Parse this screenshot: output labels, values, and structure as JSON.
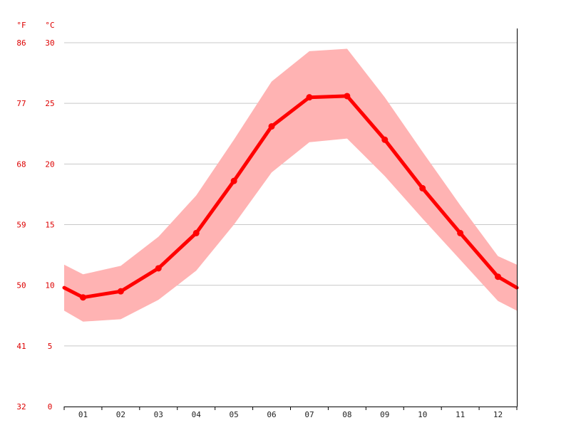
{
  "chart_data": {
    "type": "line",
    "title": "",
    "xlabel": "",
    "ylabel": "",
    "units": {
      "fahrenheit": "°F",
      "celsius": "°C"
    },
    "categories": [
      "01",
      "02",
      "03",
      "04",
      "05",
      "06",
      "07",
      "08",
      "09",
      "10",
      "11",
      "12"
    ],
    "ylim": [
      0,
      30
    ],
    "y_ticks_c": [
      "0",
      "5",
      "10",
      "15",
      "20",
      "25",
      "30"
    ],
    "y_ticks_f": [
      "32",
      "41",
      "50",
      "59",
      "68",
      "77",
      "86"
    ],
    "grid": true,
    "series": [
      {
        "values": [
          9.0,
          9.5,
          11.4,
          14.3,
          18.6,
          23.1,
          25.5,
          25.6,
          22.0,
          18.0,
          14.3,
          10.7
        ]
      }
    ],
    "range_band": {
      "low": [
        7.0,
        7.2,
        8.8,
        11.2,
        15.0,
        19.3,
        21.8,
        22.1,
        19.0,
        15.5,
        12.1,
        8.7
      ],
      "high": [
        10.9,
        11.6,
        14.0,
        17.4,
        22.0,
        26.8,
        29.3,
        29.5,
        25.5,
        21.0,
        16.6,
        12.4
      ],
      "edge_left": {
        "low": 7.9,
        "high": 11.7,
        "value": 9.8
      },
      "edge_right": {
        "low": 7.9,
        "high": 11.7,
        "value": 9.8
      }
    },
    "colors": {
      "line": "#ff0000",
      "band": "#ffb3b3",
      "axis_text": "#dd0000",
      "grid": "#c8c8c8",
      "axis": "#000000"
    }
  }
}
